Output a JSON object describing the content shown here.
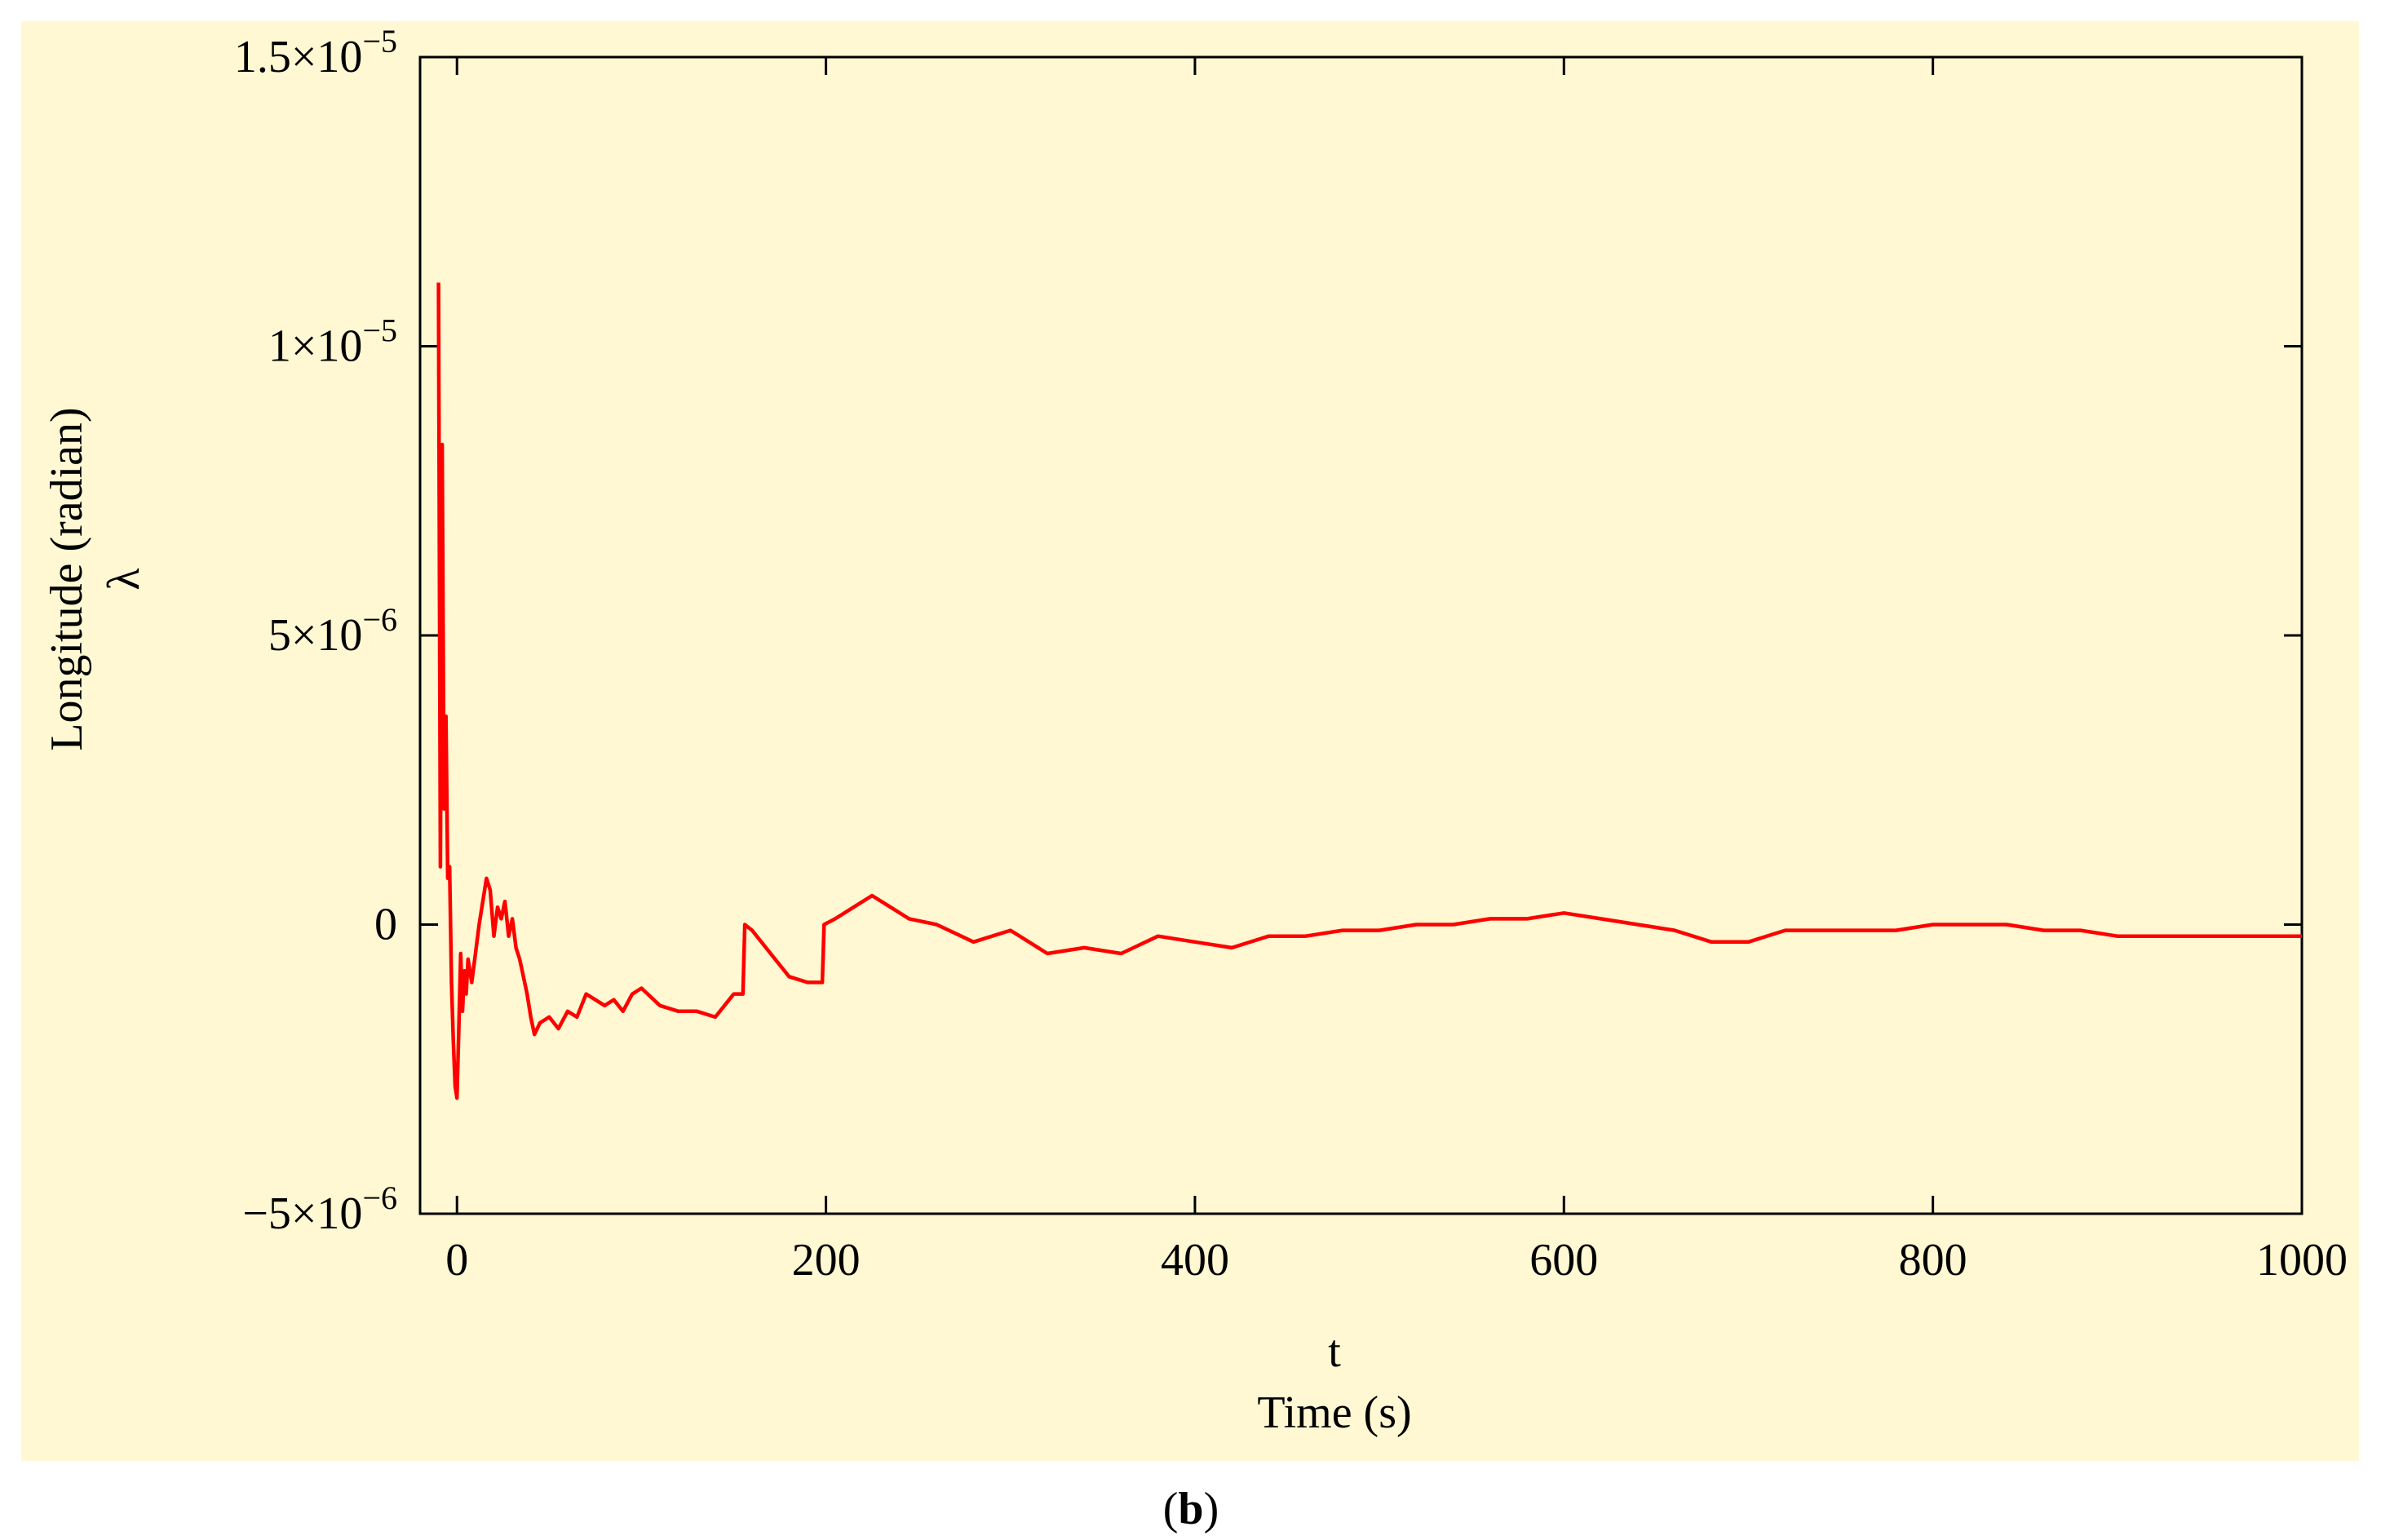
{
  "chart_data": {
    "type": "line",
    "title": "",
    "xlabel_symbol": "t",
    "xlabel": "Time (s)",
    "ylabel_symbol": "λ",
    "ylabel": "Longitude (radian)",
    "xlim": [
      -20,
      1000
    ],
    "ylim": [
      -5e-06,
      1.5e-05
    ],
    "x_ticks": [
      0,
      200,
      400,
      600,
      800,
      1000
    ],
    "x_tick_labels": [
      "0",
      "200",
      "400",
      "600",
      "800",
      "1000"
    ],
    "y_ticks": [
      -5e-06,
      0,
      5e-06,
      1e-05,
      1.5e-05
    ],
    "y_tick_labels": [
      {
        "mantissa": "−5×10",
        "exp": "−6"
      },
      {
        "mantissa": "0",
        "exp": ""
      },
      {
        "mantissa": "5×10",
        "exp": "−6"
      },
      {
        "mantissa": "1×10",
        "exp": "−5"
      },
      {
        "mantissa": "1.5×10",
        "exp": "−5"
      }
    ],
    "grid": false,
    "background_color": "#fff8d2",
    "line_color": "#ff0000",
    "series": [
      {
        "x": [
          -10,
          -9,
          -8,
          -7,
          -6,
          -5,
          -4,
          -3,
          -2,
          -1,
          0,
          1,
          2,
          3,
          4,
          5,
          6,
          8,
          10,
          12,
          14,
          16,
          18,
          20,
          22,
          24,
          26,
          28,
          30,
          32,
          34,
          36,
          38,
          40,
          42,
          45,
          50,
          55,
          60,
          65,
          70,
          75,
          80,
          85,
          90,
          95,
          100,
          110,
          120,
          130,
          140,
          145,
          150,
          155,
          156,
          160,
          170,
          180,
          190,
          198,
          199,
          205,
          215,
          225,
          235,
          245,
          260,
          280,
          300,
          320,
          340,
          360,
          380,
          400,
          420,
          440,
          460,
          480,
          500,
          520,
          540,
          560,
          580,
          600,
          620,
          640,
          660,
          680,
          700,
          720,
          740,
          760,
          780,
          800,
          820,
          840,
          860,
          880,
          900,
          920,
          940,
          960,
          980,
          1000
        ],
        "y": [
          1.11e-05,
          1e-06,
          8.3e-06,
          2e-06,
          3.6e-06,
          8e-07,
          1e-06,
          -1e-06,
          -2e-06,
          -2.8e-06,
          -3e-06,
          -1.8e-06,
          -5e-07,
          -1.5e-06,
          -8e-07,
          -1.2e-06,
          -6e-07,
          -1e-06,
          -5e-07,
          0.0,
          4e-07,
          8e-07,
          6e-07,
          -2e-07,
          3e-07,
          1e-07,
          4e-07,
          -2e-07,
          1e-07,
          -4e-07,
          -6e-07,
          -9e-07,
          -1.2e-06,
          -1.6e-06,
          -1.9e-06,
          -1.7e-06,
          -1.6e-06,
          -1.8e-06,
          -1.5e-06,
          -1.6e-06,
          -1.2e-06,
          -1.3e-06,
          -1.4e-06,
          -1.3e-06,
          -1.5e-06,
          -1.2e-06,
          -1.1e-06,
          -1.4e-06,
          -1.5e-06,
          -1.5e-06,
          -1.6e-06,
          -1.4e-06,
          -1.2e-06,
          -1.2e-06,
          0.0,
          -1e-07,
          -5e-07,
          -9e-07,
          -1e-06,
          -1e-06,
          0.0,
          1e-07,
          3e-07,
          5e-07,
          3e-07,
          1e-07,
          0.0,
          -3e-07,
          -1e-07,
          -5e-07,
          -4e-07,
          -5e-07,
          -2e-07,
          -3e-07,
          -4e-07,
          -2e-07,
          -2e-07,
          -1e-07,
          -1e-07,
          0.0,
          0.0,
          1e-07,
          1e-07,
          2e-07,
          1e-07,
          0.0,
          -1e-07,
          -3e-07,
          -3e-07,
          -1e-07,
          -1e-07,
          -1e-07,
          -1e-07,
          0.0,
          0.0,
          0.0,
          -1e-07,
          -1e-07,
          -2e-07,
          -2e-07,
          -2e-07,
          -2e-07,
          -2e-07,
          -2e-07
        ]
      }
    ]
  },
  "caption": {
    "open": "(",
    "letter": "b",
    "close": ")"
  }
}
